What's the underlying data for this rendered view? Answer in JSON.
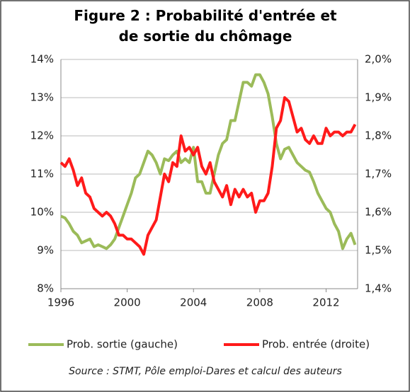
{
  "chart_data": {
    "type": "line",
    "title": "Figure 2 : Probabilité d'entrée et de sortie du chômage",
    "source": "Source : STMT, Pôle emploi-Dares et calcul des auteurs",
    "x": [
      1996,
      1996.25,
      1996.5,
      1996.75,
      1997,
      1997.25,
      1997.5,
      1997.75,
      1998,
      1998.25,
      1998.5,
      1998.75,
      1999,
      1999.25,
      1999.5,
      1999.75,
      2000,
      2000.25,
      2000.5,
      2000.75,
      2001,
      2001.25,
      2001.5,
      2001.75,
      2002,
      2002.25,
      2002.5,
      2002.75,
      2003,
      2003.25,
      2003.5,
      2003.75,
      2004,
      2004.25,
      2004.5,
      2004.75,
      2005,
      2005.25,
      2005.5,
      2005.75,
      2006,
      2006.25,
      2006.5,
      2006.75,
      2007,
      2007.25,
      2007.5,
      2007.75,
      2008,
      2008.25,
      2008.5,
      2008.75,
      2009,
      2009.25,
      2009.5,
      2009.75,
      2010,
      2010.25,
      2010.5,
      2010.75,
      2011,
      2011.25,
      2011.5,
      2011.75,
      2012,
      2012.25,
      2012.5,
      2012.75,
      2013,
      2013.25,
      2013.5,
      2013.75
    ],
    "series": [
      {
        "name": "Prob. sortie (gauche)",
        "color": "#9bbb59",
        "axis": "y",
        "values": [
          9.9,
          9.85,
          9.7,
          9.5,
          9.4,
          9.2,
          9.25,
          9.3,
          9.1,
          9.15,
          9.1,
          9.05,
          9.15,
          9.3,
          9.6,
          9.9,
          10.2,
          10.5,
          10.9,
          11.0,
          11.3,
          11.6,
          11.5,
          11.3,
          11.0,
          11.4,
          11.35,
          11.5,
          11.6,
          11.3,
          11.4,
          11.3,
          11.7,
          10.8,
          10.8,
          10.5,
          10.5,
          11.0,
          11.5,
          11.8,
          11.9,
          12.4,
          12.4,
          12.9,
          13.4,
          13.4,
          13.3,
          13.6,
          13.6,
          13.4,
          13.1,
          12.5,
          11.8,
          11.4,
          11.65,
          11.7,
          11.5,
          11.3,
          11.2,
          11.1,
          11.05,
          10.8,
          10.5,
          10.3,
          10.1,
          10.0,
          9.7,
          9.5,
          9.05,
          9.3,
          9.45,
          9.15
        ]
      },
      {
        "name": "Prob. entrée (droite)",
        "color": "#ff1a1a",
        "axis": "y2",
        "values": [
          1.73,
          1.72,
          1.74,
          1.71,
          1.67,
          1.69,
          1.65,
          1.64,
          1.61,
          1.6,
          1.59,
          1.6,
          1.59,
          1.57,
          1.54,
          1.54,
          1.53,
          1.53,
          1.52,
          1.51,
          1.49,
          1.54,
          1.56,
          1.58,
          1.64,
          1.7,
          1.68,
          1.73,
          1.72,
          1.8,
          1.76,
          1.77,
          1.75,
          1.77,
          1.72,
          1.7,
          1.73,
          1.68,
          1.66,
          1.64,
          1.67,
          1.62,
          1.66,
          1.64,
          1.66,
          1.64,
          1.65,
          1.6,
          1.63,
          1.63,
          1.65,
          1.72,
          1.82,
          1.84,
          1.9,
          1.89,
          1.85,
          1.81,
          1.82,
          1.79,
          1.78,
          1.8,
          1.78,
          1.78,
          1.82,
          1.8,
          1.81,
          1.81,
          1.8,
          1.81,
          1.81,
          1.83
        ]
      }
    ],
    "xlim": [
      1996,
      2013.9
    ],
    "xticks": [
      1996,
      2000,
      2004,
      2008,
      2012
    ],
    "ylim": [
      8,
      14
    ],
    "yticks": [
      {
        "value": 8,
        "label": "8%"
      },
      {
        "value": 9,
        "label": "9%"
      },
      {
        "value": 10,
        "label": "10%"
      },
      {
        "value": 11,
        "label": "11%"
      },
      {
        "value": 12,
        "label": "12%"
      },
      {
        "value": 13,
        "label": "13%"
      },
      {
        "value": 14,
        "label": "14%"
      }
    ],
    "y2lim": [
      1.4,
      2.0
    ],
    "y2ticks": [
      {
        "value": 1.4,
        "label": "1,4%"
      },
      {
        "value": 1.5,
        "label": "1,5%"
      },
      {
        "value": 1.6,
        "label": "1,6%"
      },
      {
        "value": 1.7,
        "label": "1,7%"
      },
      {
        "value": 1.8,
        "label": "1,8%"
      },
      {
        "value": 1.9,
        "label": "1,9%"
      },
      {
        "value": 2.0,
        "label": "2,0%"
      }
    ],
    "grid": true
  }
}
